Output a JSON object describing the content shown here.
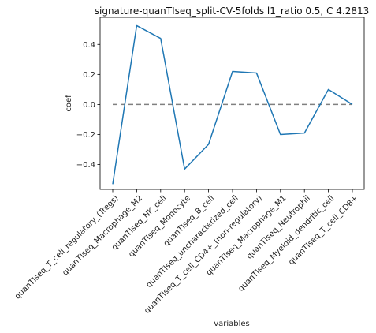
{
  "chart_data": {
    "type": "line",
    "title": "signature-quanTIseq_split-CV-5folds l1_ratio 0.5, C 4.2813",
    "xlabel": "variables",
    "ylabel": "coef",
    "categories": [
      "quanTIseq_T_cell_regulatory_(Tregs)",
      "quanTIseq_Macrophage_M2",
      "quanTIseq_NK_cell",
      "quanTIseq_Monocyte",
      "quanTIseq_B_cell",
      "quanTIseq_uncharacterized_cell",
      "quanTIseq_T_cell_CD4+_(non-regulatory)",
      "quanTIseq_Macrophage_M1",
      "quanTIseq_Neutrophil",
      "quanTIseq_Myeloid_dendritic_cell",
      "quanTIseq_T_cell_CD8+"
    ],
    "series": [
      {
        "values": [
          -0.53,
          0.525,
          0.44,
          -0.43,
          -0.265,
          0.22,
          0.21,
          -0.2,
          -0.19,
          0.1,
          0.0
        ]
      }
    ],
    "reference_line": {
      "y": 0,
      "style": "dashed"
    },
    "ylim": [
      -0.565,
      0.58
    ],
    "yticks": [
      -0.4,
      -0.2,
      0.0,
      0.2,
      0.4
    ],
    "ytick_labels": [
      "−0.4",
      "−0.2",
      "0.0",
      "0.2",
      "0.4"
    ],
    "grid": false,
    "colors": {
      "line": "#1f77b4",
      "reference": "#808080",
      "axis": "#000000"
    }
  }
}
